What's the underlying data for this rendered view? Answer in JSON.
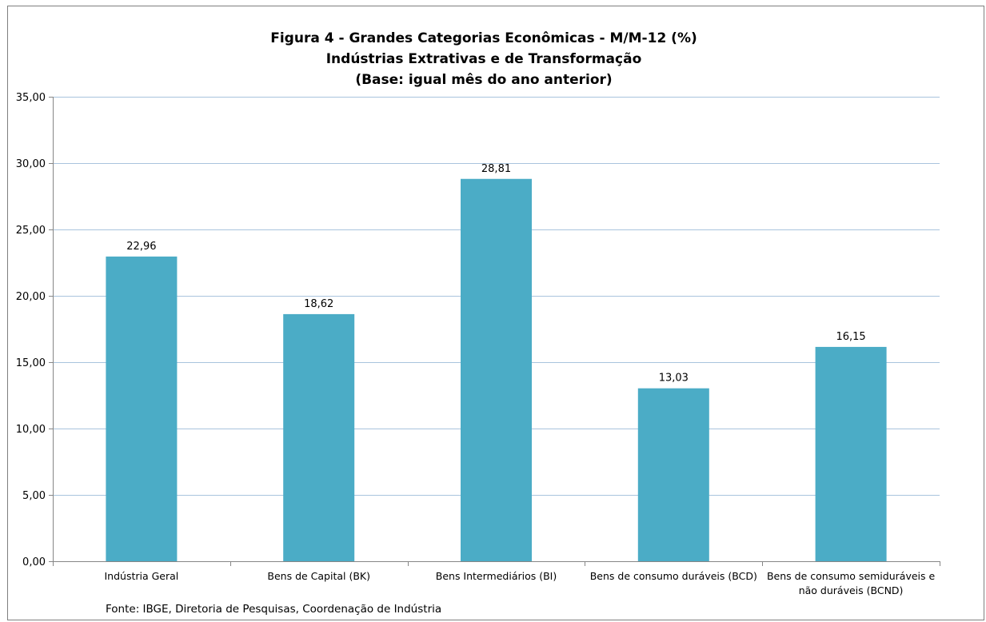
{
  "chart_data": {
    "type": "bar",
    "title": [
      "Figura 4 - Grandes Categorias Econômicas - M/M-12 (%)",
      "Indústrias Extrativas e de Transformação",
      "(Base: igual mês do ano anterior)"
    ],
    "categories": [
      [
        "Indústria Geral"
      ],
      [
        "Bens de Capital (BK)"
      ],
      [
        "Bens Intermediários (BI)"
      ],
      [
        "Bens de consumo duráveis (BCD)"
      ],
      [
        "Bens de consumo semiduráveis e",
        "não duráveis (BCND)"
      ]
    ],
    "values": [
      22.96,
      18.62,
      28.81,
      13.03,
      16.15
    ],
    "value_labels": [
      "22,96",
      "18,62",
      "28,81",
      "13,03",
      "16,15"
    ],
    "ylim": [
      0,
      35
    ],
    "yticks": [
      0,
      5,
      10,
      15,
      20,
      25,
      30,
      35
    ],
    "ytick_labels": [
      "0,00",
      "5,00",
      "10,00",
      "15,00",
      "20,00",
      "25,00",
      "30,00",
      "35,00"
    ],
    "xlabel": "",
    "ylabel": "",
    "grid": true,
    "bar_color": "#4bacc6",
    "grid_color": "#a9c4dd",
    "source": "Fonte: IBGE, Diretoria de Pesquisas, Coordenação de Indústria"
  }
}
